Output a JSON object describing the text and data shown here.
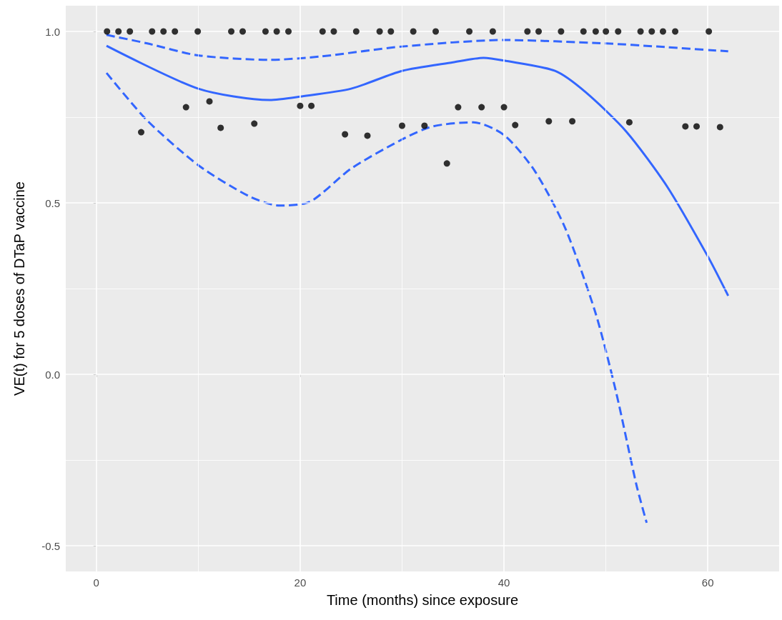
{
  "chart_data": {
    "type": "scatter",
    "xlabel": "Time (months) since exposure",
    "ylabel": "VE(t) for 5 doses of DTaP vaccine",
    "xlim": [
      -3,
      67
    ],
    "ylim": [
      -0.575,
      1.075
    ],
    "xticks": [
      0,
      {
        "value": 10,
        "label": null
      },
      20,
      {
        "value": 30,
        "label": null
      },
      40,
      {
        "value": 50,
        "label": null
      },
      60
    ],
    "yticks": [
      {
        "value": -0.5,
        "label": "-0.5"
      },
      {
        "value": -0.25,
        "label": null
      },
      {
        "value": 0,
        "label": "0.0"
      },
      {
        "value": 0.25,
        "label": null
      },
      {
        "value": 0.5,
        "label": "0.5"
      },
      {
        "value": 0.75,
        "label": null
      },
      {
        "value": 1,
        "label": "1.0"
      }
    ],
    "grid": true,
    "series": [
      {
        "marker": "circle",
        "color": "#000000",
        "x": [
          1.05,
          2.17,
          3.29,
          5.47,
          6.59,
          7.71,
          9.95,
          13.24,
          14.36,
          16.6,
          17.7,
          18.85,
          22.2,
          23.3,
          25.5,
          27.8,
          28.9,
          31.1,
          33.3,
          36.6,
          38.9,
          42.3,
          43.4,
          45.6,
          47.8,
          49.0,
          50.0,
          51.2,
          53.4,
          54.5,
          55.6,
          56.8,
          60.1,
          4.4,
          8.8,
          11.1,
          12.2,
          15.5,
          20.0,
          21.1,
          24.4,
          26.6,
          30.0,
          32.2,
          34.4,
          35.5,
          37.8,
          40.0,
          41.1,
          44.4,
          46.7,
          52.3,
          57.8,
          58.9,
          61.2
        ],
        "values": [
          1,
          1,
          1,
          1,
          1,
          1,
          1,
          1,
          1,
          1,
          1,
          1,
          1,
          1,
          1,
          1,
          1,
          1,
          1,
          1,
          1,
          1,
          1,
          1,
          1,
          1,
          1,
          1,
          1,
          1,
          1,
          1,
          1,
          0.706,
          0.779,
          0.796,
          0.719,
          0.731,
          0.783,
          0.783,
          0.7,
          0.696,
          0.725,
          0.725,
          0.615,
          0.779,
          0.779,
          0.779,
          0.727,
          0.738,
          0.738,
          0.735,
          0.723,
          0.723,
          0.721
        ]
      },
      {
        "type": "line",
        "marker": "none",
        "line_style": "solid",
        "color": "#3366ff",
        "x": [
          1,
          10,
          17,
          20,
          25,
          30,
          35,
          38,
          40,
          45,
          48,
          52,
          56,
          60,
          62
        ],
        "values": [
          0.958,
          0.833,
          0.8,
          0.81,
          0.833,
          0.885,
          0.91,
          0.923,
          0.915,
          0.885,
          0.823,
          0.708,
          0.548,
          0.344,
          0.229
        ]
      },
      {
        "type": "line",
        "marker": "none",
        "line_style": "dashed",
        "color": "#3366ff",
        "x": [
          1,
          5,
          10,
          17,
          22,
          30,
          40,
          50,
          55,
          62
        ],
        "values": [
          0.99,
          0.965,
          0.93,
          0.917,
          0.927,
          0.956,
          0.975,
          0.965,
          0.956,
          0.942
        ]
      },
      {
        "type": "line",
        "marker": "none",
        "line_style": "dashed",
        "color": "#3366ff",
        "x": [
          1,
          5,
          10,
          15,
          18,
          21,
          25,
          30,
          33,
          37,
          40,
          43,
          46,
          49,
          51,
          53,
          54
        ],
        "values": [
          0.879,
          0.74,
          0.61,
          0.519,
          0.492,
          0.504,
          0.6,
          0.685,
          0.723,
          0.735,
          0.698,
          0.594,
          0.427,
          0.177,
          -0.052,
          -0.323,
          -0.433
        ]
      }
    ]
  }
}
